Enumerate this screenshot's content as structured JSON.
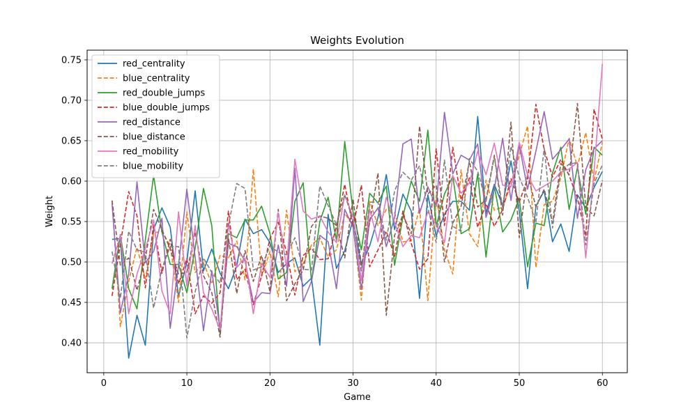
{
  "chart_data": {
    "type": "line",
    "title": "Weights Evolution",
    "xlabel": "Game",
    "ylabel": "Weight",
    "xlim": [
      -2,
      63
    ],
    "ylim": [
      0.363,
      0.762
    ],
    "xticks": [
      0,
      10,
      20,
      30,
      40,
      50,
      60
    ],
    "yticks": [
      0.4,
      0.45,
      0.5,
      0.55,
      0.6,
      0.65,
      0.7,
      0.75
    ],
    "grid": true,
    "legend_position": "top-left",
    "x": [
      1,
      2,
      3,
      4,
      5,
      6,
      7,
      8,
      9,
      10,
      11,
      12,
      13,
      14,
      15,
      16,
      17,
      18,
      19,
      20,
      21,
      22,
      23,
      24,
      25,
      26,
      27,
      28,
      29,
      30,
      31,
      32,
      33,
      34,
      35,
      36,
      37,
      38,
      39,
      40,
      41,
      42,
      43,
      44,
      45,
      46,
      47,
      48,
      49,
      50,
      51,
      52,
      53,
      54,
      55,
      56,
      57,
      58,
      59,
      60
    ],
    "series": [
      {
        "name": "red_centrality",
        "color": "#1f77b4",
        "dash": "solid",
        "values": [
          0.528,
          0.529,
          0.381,
          0.434,
          0.397,
          0.54,
          0.567,
          0.543,
          0.457,
          0.5,
          0.588,
          0.489,
          0.516,
          0.486,
          0.467,
          0.495,
          0.553,
          0.535,
          0.54,
          0.524,
          0.487,
          0.498,
          0.505,
          0.47,
          0.48,
          0.397,
          0.559,
          0.492,
          0.514,
          0.553,
          0.496,
          0.52,
          0.555,
          0.608,
          0.54,
          0.584,
          0.563,
          0.455,
          0.583,
          0.532,
          0.559,
          0.575,
          0.575,
          0.564,
          0.68,
          0.56,
          0.596,
          0.57,
          0.625,
          0.563,
          0.467,
          0.569,
          0.588,
          0.525,
          0.547,
          0.513,
          0.583,
          0.567,
          0.592,
          0.612
        ]
      },
      {
        "name": "blue_centrality",
        "color": "#ff7f0e",
        "dash": "dashed",
        "values": [
          0.576,
          0.42,
          0.476,
          0.518,
          0.479,
          0.536,
          0.538,
          0.52,
          0.45,
          0.562,
          0.487,
          0.499,
          0.473,
          0.508,
          0.505,
          0.526,
          0.478,
          0.615,
          0.482,
          0.513,
          0.457,
          0.564,
          0.488,
          0.498,
          0.521,
          0.53,
          0.506,
          0.515,
          0.56,
          0.545,
          0.453,
          0.575,
          0.545,
          0.565,
          0.561,
          0.525,
          0.526,
          0.567,
          0.452,
          0.582,
          0.515,
          0.485,
          0.614,
          0.535,
          0.519,
          0.601,
          0.564,
          0.568,
          0.596,
          0.632,
          0.668,
          0.493,
          0.571,
          0.575,
          0.604,
          0.653,
          0.618,
          0.66,
          0.6,
          0.648
        ]
      },
      {
        "name": "red_double_jumps",
        "color": "#2ca02c",
        "dash": "solid",
        "values": [
          0.467,
          0.534,
          0.467,
          0.442,
          0.527,
          0.607,
          0.537,
          0.497,
          0.497,
          0.462,
          0.517,
          0.591,
          0.545,
          0.41,
          0.535,
          0.53,
          0.552,
          0.552,
          0.569,
          0.535,
          0.479,
          0.487,
          0.575,
          0.598,
          0.476,
          0.55,
          0.58,
          0.527,
          0.649,
          0.562,
          0.515,
          0.585,
          0.573,
          0.594,
          0.496,
          0.556,
          0.6,
          0.575,
          0.663,
          0.544,
          0.584,
          0.606,
          0.535,
          0.541,
          0.609,
          0.506,
          0.594,
          0.537,
          0.552,
          0.579,
          0.494,
          0.548,
          0.545,
          0.61,
          0.642,
          0.565,
          0.617,
          0.559,
          0.642,
          0.632
        ]
      },
      {
        "name": "blue_double_jumps",
        "color": "#d62728",
        "dash": "dashed",
        "values": [
          0.458,
          0.522,
          0.587,
          0.557,
          0.468,
          0.546,
          0.486,
          0.528,
          0.473,
          0.504,
          0.436,
          0.458,
          0.449,
          0.462,
          0.563,
          0.478,
          0.491,
          0.447,
          0.483,
          0.529,
          0.549,
          0.512,
          0.459,
          0.508,
          0.517,
          0.503,
          0.504,
          0.544,
          0.596,
          0.543,
          0.595,
          0.494,
          0.515,
          0.538,
          0.507,
          0.563,
          0.523,
          0.491,
          0.504,
          0.64,
          0.545,
          0.642,
          0.577,
          0.604,
          0.543,
          0.572,
          0.544,
          0.565,
          0.603,
          0.574,
          0.603,
          0.695,
          0.639,
          0.605,
          0.627,
          0.607,
          0.579,
          0.532,
          0.689,
          0.652
        ]
      },
      {
        "name": "red_distance",
        "color": "#9467bd",
        "dash": "solid",
        "values": [
          0.572,
          0.437,
          0.485,
          0.599,
          0.499,
          0.513,
          0.554,
          0.418,
          0.496,
          0.59,
          0.506,
          0.415,
          0.489,
          0.417,
          0.523,
          0.519,
          0.501,
          0.45,
          0.462,
          0.461,
          0.521,
          0.47,
          0.616,
          0.451,
          0.476,
          0.533,
          0.525,
          0.467,
          0.565,
          0.543,
          0.466,
          0.552,
          0.567,
          0.519,
          0.555,
          0.646,
          0.652,
          0.56,
          0.593,
          0.569,
          0.685,
          0.609,
          0.632,
          0.626,
          0.646,
          0.555,
          0.59,
          0.653,
          0.576,
          0.645,
          0.59,
          0.637,
          0.686,
          0.627,
          0.639,
          0.652,
          0.554,
          0.614,
          0.64,
          0.65
        ]
      },
      {
        "name": "blue_distance",
        "color": "#8c564b",
        "dash": "dashed",
        "values": [
          0.576,
          0.496,
          0.505,
          0.465,
          0.504,
          0.565,
          0.54,
          0.516,
          0.485,
          0.487,
          0.537,
          0.483,
          0.462,
          0.407,
          0.53,
          0.461,
          0.514,
          0.476,
          0.508,
          0.463,
          0.565,
          0.452,
          0.473,
          0.49,
          0.544,
          0.557,
          0.554,
          0.545,
          0.505,
          0.578,
          0.496,
          0.549,
          0.61,
          0.434,
          0.533,
          0.558,
          0.535,
          0.668,
          0.584,
          0.595,
          0.5,
          0.548,
          0.569,
          0.625,
          0.568,
          0.577,
          0.632,
          0.558,
          0.673,
          0.53,
          0.609,
          0.568,
          0.59,
          0.548,
          0.622,
          0.608,
          0.696,
          0.568,
          0.557,
          0.601
        ]
      },
      {
        "name": "red_mobility",
        "color": "#e377c2",
        "dash": "solid",
        "values": [
          0.498,
          0.533,
          0.436,
          0.485,
          0.516,
          0.552,
          0.464,
          0.436,
          0.562,
          0.47,
          0.545,
          0.462,
          0.442,
          0.416,
          0.548,
          0.493,
          0.505,
          0.436,
          0.498,
          0.481,
          0.561,
          0.493,
          0.627,
          0.563,
          0.553,
          0.557,
          0.537,
          0.524,
          0.583,
          0.556,
          0.477,
          0.565,
          0.525,
          0.58,
          0.549,
          0.519,
          0.533,
          0.53,
          0.562,
          0.546,
          0.524,
          0.607,
          0.585,
          0.598,
          0.637,
          0.608,
          0.647,
          0.595,
          0.593,
          0.648,
          0.607,
          0.588,
          0.594,
          0.6,
          0.611,
          0.615,
          0.623,
          0.505,
          0.612,
          0.745
        ]
      },
      {
        "name": "blue_mobility",
        "color": "#7f7f7f",
        "dash": "dashed",
        "values": [
          0.513,
          0.455,
          0.538,
          0.515,
          0.512,
          0.443,
          0.492,
          0.519,
          0.519,
          0.406,
          0.463,
          0.505,
          0.487,
          0.474,
          0.545,
          0.597,
          0.591,
          0.49,
          0.494,
          0.52,
          0.512,
          0.509,
          0.53,
          0.491,
          0.49,
          0.594,
          0.57,
          0.546,
          0.583,
          0.552,
          0.489,
          0.574,
          0.574,
          0.527,
          0.588,
          0.611,
          0.601,
          0.619,
          0.567,
          0.524,
          0.626,
          0.544,
          0.538,
          0.628,
          0.612,
          0.575,
          0.63,
          0.567,
          0.643,
          0.605,
          0.58,
          0.549,
          0.641,
          0.542,
          0.613,
          0.621,
          0.623,
          0.521,
          0.597,
          0.62
        ]
      }
    ]
  }
}
